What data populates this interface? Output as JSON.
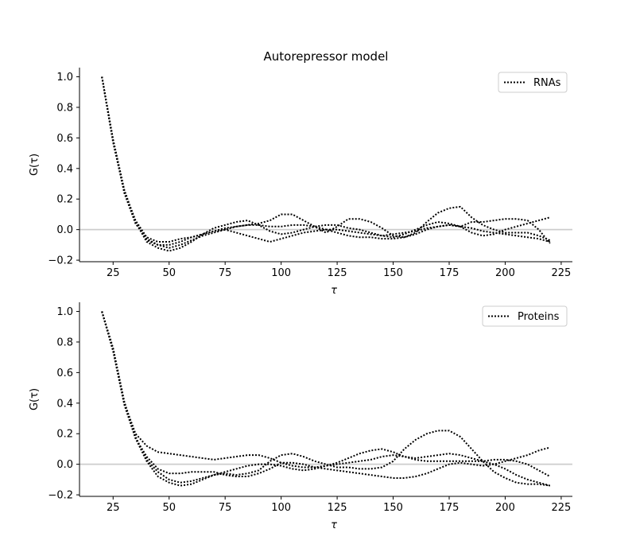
{
  "figure": {
    "title": "Autorepressor model"
  },
  "chart_data": [
    {
      "type": "line",
      "xlabel": "τ",
      "ylabel": "G(τ)",
      "xlim": [
        10,
        230
      ],
      "ylim": [
        -0.21,
        1.06
      ],
      "xticks": [
        25,
        50,
        75,
        100,
        125,
        150,
        175,
        200,
        225
      ],
      "yticks": [
        -0.2,
        0.0,
        0.2,
        0.4,
        0.6,
        0.8,
        1.0
      ],
      "xtick_labels": [
        "25",
        "50",
        "75",
        "100",
        "125",
        "150",
        "175",
        "200",
        "225"
      ],
      "ytick_labels": [
        "−0.2",
        "0.0",
        "0.2",
        "0.4",
        "0.6",
        "0.8",
        "1.0"
      ],
      "reference_line": 0.0,
      "grid": false,
      "legend": {
        "label": "RNAs",
        "placement": "upper right"
      },
      "line_style": "dotted",
      "color": "#000000",
      "reference_color": "#cccccc",
      "x": [
        20,
        25,
        30,
        35,
        40,
        45,
        50,
        55,
        60,
        65,
        70,
        75,
        80,
        85,
        90,
        95,
        100,
        105,
        110,
        115,
        120,
        125,
        130,
        135,
        140,
        145,
        150,
        155,
        160,
        165,
        170,
        175,
        180,
        185,
        190,
        195,
        200,
        205,
        210,
        215,
        220
      ],
      "series": [
        {
          "values": [
            1.0,
            0.58,
            0.25,
            0.05,
            -0.08,
            -0.12,
            -0.14,
            -0.12,
            -0.08,
            -0.03,
            0.01,
            0.03,
            0.05,
            0.06,
            0.03,
            -0.01,
            -0.03,
            -0.02,
            0.0,
            0.02,
            0.03,
            0.03,
            0.01,
            0.0,
            -0.02,
            -0.04,
            -0.05,
            -0.03,
            0.0,
            0.03,
            0.05,
            0.04,
            0.02,
            -0.02,
            -0.04,
            -0.03,
            0.0,
            0.02,
            0.04,
            0.06,
            0.08
          ]
        },
        {
          "values": [
            1.0,
            0.58,
            0.24,
            0.04,
            -0.06,
            -0.1,
            -0.12,
            -0.1,
            -0.07,
            -0.04,
            -0.02,
            0.0,
            0.02,
            0.03,
            0.04,
            0.06,
            0.1,
            0.1,
            0.06,
            0.02,
            -0.02,
            0.02,
            0.07,
            0.07,
            0.05,
            0.01,
            -0.04,
            -0.05,
            -0.02,
            0.05,
            0.11,
            0.14,
            0.15,
            0.08,
            0.03,
            0.0,
            -0.02,
            -0.02,
            -0.02,
            -0.04,
            -0.07
          ]
        },
        {
          "values": [
            1.0,
            0.57,
            0.25,
            0.06,
            -0.05,
            -0.08,
            -0.08,
            -0.06,
            -0.05,
            -0.03,
            -0.01,
            0.01,
            0.02,
            0.03,
            0.03,
            0.02,
            0.02,
            0.03,
            0.03,
            0.02,
            0.0,
            -0.02,
            -0.04,
            -0.05,
            -0.05,
            -0.06,
            -0.06,
            -0.05,
            -0.03,
            0.0,
            0.02,
            0.03,
            0.02,
            0.05,
            0.05,
            0.06,
            0.07,
            0.07,
            0.06,
            0.0,
            -0.09
          ]
        },
        {
          "values": [
            1.0,
            0.59,
            0.26,
            0.05,
            -0.07,
            -0.1,
            -0.1,
            -0.08,
            -0.05,
            -0.03,
            -0.01,
            0.0,
            -0.02,
            -0.04,
            -0.06,
            -0.08,
            -0.06,
            -0.04,
            -0.02,
            -0.01,
            0.0,
            0.0,
            -0.01,
            -0.02,
            -0.03,
            -0.04,
            -0.03,
            -0.02,
            -0.01,
            0.01,
            0.02,
            0.03,
            0.02,
            0.01,
            -0.01,
            -0.02,
            -0.03,
            -0.04,
            -0.05,
            -0.06,
            -0.08
          ]
        }
      ]
    },
    {
      "type": "line",
      "xlabel": "τ",
      "ylabel": "G(τ)",
      "xlim": [
        10,
        230
      ],
      "ylim": [
        -0.21,
        1.06
      ],
      "xticks": [
        25,
        50,
        75,
        100,
        125,
        150,
        175,
        200,
        225
      ],
      "yticks": [
        -0.2,
        0.0,
        0.2,
        0.4,
        0.6,
        0.8,
        1.0
      ],
      "xtick_labels": [
        "25",
        "50",
        "75",
        "100",
        "125",
        "150",
        "175",
        "200",
        "225"
      ],
      "ytick_labels": [
        "−0.2",
        "0.0",
        "0.2",
        "0.4",
        "0.6",
        "0.8",
        "1.0"
      ],
      "reference_line": 0.0,
      "grid": false,
      "legend": {
        "label": "Proteins",
        "placement": "upper right"
      },
      "line_style": "dotted",
      "color": "#000000",
      "reference_color": "#cccccc",
      "x": [
        20,
        25,
        30,
        35,
        40,
        45,
        50,
        55,
        60,
        65,
        70,
        75,
        80,
        85,
        90,
        95,
        100,
        105,
        110,
        115,
        120,
        125,
        130,
        135,
        140,
        145,
        150,
        155,
        160,
        165,
        170,
        175,
        180,
        185,
        190,
        195,
        200,
        205,
        210,
        215,
        220
      ],
      "series": [
        {
          "values": [
            1.0,
            0.75,
            0.4,
            0.2,
            0.12,
            0.08,
            0.07,
            0.06,
            0.05,
            0.04,
            0.03,
            0.04,
            0.05,
            0.06,
            0.06,
            0.04,
            0.01,
            -0.01,
            -0.02,
            -0.02,
            -0.01,
            0.0,
            0.01,
            0.02,
            0.03,
            0.05,
            0.06,
            0.05,
            0.04,
            0.05,
            0.06,
            0.07,
            0.06,
            0.04,
            0.02,
            0.0,
            -0.03,
            -0.07,
            -0.1,
            -0.12,
            -0.14
          ]
        },
        {
          "values": [
            1.0,
            0.75,
            0.4,
            0.17,
            0.05,
            -0.03,
            -0.06,
            -0.06,
            -0.05,
            -0.05,
            -0.05,
            -0.07,
            -0.08,
            -0.08,
            -0.06,
            -0.03,
            0.01,
            0.01,
            0.0,
            -0.02,
            -0.03,
            -0.04,
            -0.05,
            -0.06,
            -0.07,
            -0.08,
            -0.09,
            -0.09,
            -0.08,
            -0.06,
            -0.03,
            0.0,
            0.01,
            0.0,
            -0.01,
            0.0,
            0.02,
            0.04,
            0.06,
            0.09,
            0.11
          ]
        },
        {
          "values": [
            1.0,
            0.74,
            0.39,
            0.17,
            0.02,
            -0.08,
            -0.12,
            -0.14,
            -0.13,
            -0.1,
            -0.07,
            -0.06,
            -0.07,
            -0.06,
            -0.04,
            0.02,
            0.06,
            0.07,
            0.05,
            0.02,
            0.0,
            -0.02,
            -0.02,
            -0.03,
            -0.03,
            -0.02,
            0.02,
            0.1,
            0.16,
            0.2,
            0.22,
            0.22,
            0.18,
            0.1,
            0.02,
            -0.05,
            -0.09,
            -0.12,
            -0.13,
            -0.13,
            -0.14
          ]
        },
        {
          "values": [
            1.0,
            0.76,
            0.41,
            0.18,
            0.03,
            -0.05,
            -0.1,
            -0.12,
            -0.11,
            -0.09,
            -0.07,
            -0.05,
            -0.03,
            -0.01,
            0.0,
            0.0,
            -0.01,
            -0.03,
            -0.04,
            -0.03,
            -0.01,
            0.01,
            0.04,
            0.07,
            0.09,
            0.1,
            0.08,
            0.05,
            0.03,
            0.02,
            0.02,
            0.02,
            0.02,
            0.02,
            0.02,
            0.03,
            0.03,
            0.02,
            0.0,
            -0.04,
            -0.08
          ]
        }
      ]
    }
  ]
}
